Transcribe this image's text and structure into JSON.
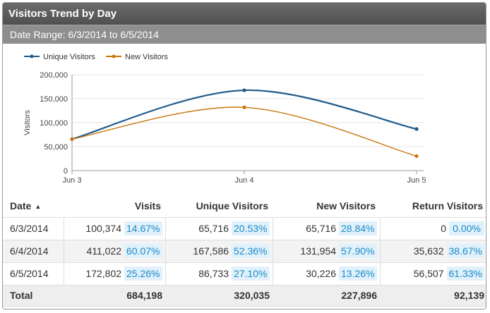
{
  "widget": {
    "title": "Visitors Trend by Day",
    "date_range": "Date Range: 6/3/2014 to 6/5/2014"
  },
  "colors": {
    "unique": "#1f5a8a",
    "new": "#c8760f",
    "accent": "#1a8ac9"
  },
  "chart_data": {
    "type": "line",
    "categories": [
      "Jun 3",
      "Jun 4",
      "Jun 5"
    ],
    "series": [
      {
        "name": "Unique Visitors",
        "values": [
          65716,
          167586,
          86733
        ]
      },
      {
        "name": "New Visitors",
        "values": [
          65716,
          131954,
          30226
        ]
      }
    ],
    "ylabel": "Visitors",
    "ylim": [
      0,
      200000
    ],
    "yticks": [
      "0",
      "50,000",
      "100,000",
      "150,000",
      "200,000"
    ],
    "grid": true,
    "legend": "top-left"
  },
  "table": {
    "headers": {
      "date": "Date",
      "visits": "Visits",
      "unique": "Unique Visitors",
      "new": "New Visitors",
      "return": "Return Visitors"
    },
    "rows": [
      {
        "date": "6/3/2014",
        "visits": "100,374",
        "visits_pct": "14.67%",
        "unique": "65,716",
        "unique_pct": "20.53%",
        "new": "65,716",
        "new_pct": "28.84%",
        "return": "0",
        "return_pct": "0.00%"
      },
      {
        "date": "6/4/2014",
        "visits": "411,022",
        "visits_pct": "60.07%",
        "unique": "167,586",
        "unique_pct": "52.36%",
        "new": "131,954",
        "new_pct": "57.90%",
        "return": "35,632",
        "return_pct": "38.67%"
      },
      {
        "date": "6/5/2014",
        "visits": "172,802",
        "visits_pct": "25.26%",
        "unique": "86,733",
        "unique_pct": "27.10%",
        "new": "30,226",
        "new_pct": "13.26%",
        "return": "56,507",
        "return_pct": "61.33%"
      }
    ],
    "total": {
      "label": "Total",
      "visits": "684,198",
      "unique": "320,035",
      "new": "227,896",
      "return": "92,139"
    }
  }
}
